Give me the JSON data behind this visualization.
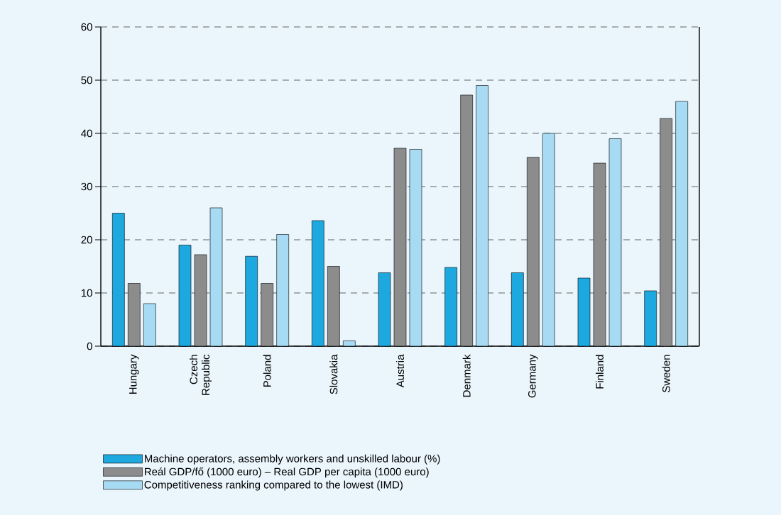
{
  "chart_data": {
    "type": "bar",
    "categories": [
      "Hungary",
      "Czech Republic",
      "Poland",
      "Slovakia",
      "Austria",
      "Denmark",
      "Germany",
      "Finland",
      "Sweden"
    ],
    "series": [
      {
        "name": "Machine operators, assembly workers and unskilled labour (%)",
        "color": "#1ea8e0",
        "values": [
          25,
          19,
          16.9,
          23.6,
          13.8,
          14.8,
          13.8,
          12.8,
          10.4
        ]
      },
      {
        "name": "Reál GDP/fő (1000 euro) – Real GDP per capita (1000 euro)",
        "color": "#8c8c8c",
        "values": [
          11.8,
          17.2,
          11.8,
          15,
          37.2,
          47.2,
          35.5,
          34.4,
          42.8
        ]
      },
      {
        "name": "Competitiveness ranking compared to the lowest (IMD)",
        "color": "#a6dbf3",
        "values": [
          8,
          26,
          21,
          1,
          37,
          49,
          40,
          39,
          46
        ]
      }
    ],
    "ylim": [
      0,
      60
    ],
    "yticks": [
      0,
      10,
      20,
      30,
      40,
      50,
      60
    ],
    "grid": "y",
    "legend": "bottom"
  }
}
